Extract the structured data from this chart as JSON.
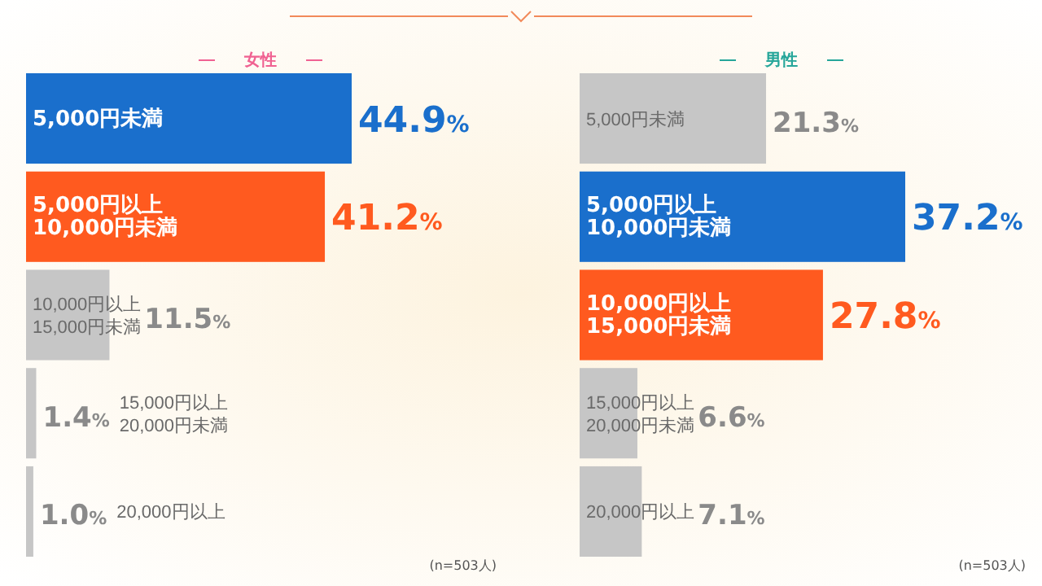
{
  "chart_data": [
    {
      "type": "bar",
      "orientation": "horizontal",
      "title": "女性",
      "categories": [
        "5,000円未満",
        "5,000円以上\n10,000円未満",
        "10,000円以上\n15,000円未満",
        "15,000円以上\n20,000円未満",
        "20,000円以上"
      ],
      "values": [
        44.9,
        41.2,
        11.5,
        1.4,
        1.0
      ],
      "colors": [
        "#1a6fcc",
        "#ff5a1f",
        "#c6c6c6",
        "#c6c6c6",
        "#c6c6c6"
      ],
      "value_labels": [
        "44.9%",
        "41.2%",
        "11.5%",
        "1.4%",
        "1.0%"
      ],
      "annotations": [
        "(n=503人)"
      ]
    },
    {
      "type": "bar",
      "orientation": "horizontal",
      "title": "男性",
      "categories": [
        "5,000円未満",
        "5,000円以上\n10,000円未満",
        "10,000円以上\n15,000円未満",
        "15,000円以上\n20,000円未満",
        "20,000円以上"
      ],
      "values": [
        21.3,
        37.2,
        27.8,
        6.6,
        7.1
      ],
      "colors": [
        "#c6c6c6",
        "#1a6fcc",
        "#ff5a1f",
        "#c6c6c6",
        "#c6c6c6"
      ],
      "value_labels": [
        "21.3%",
        "37.2%",
        "27.8%",
        "6.6%",
        "7.1%"
      ],
      "annotations": [
        "(n=503人)"
      ]
    }
  ]
}
